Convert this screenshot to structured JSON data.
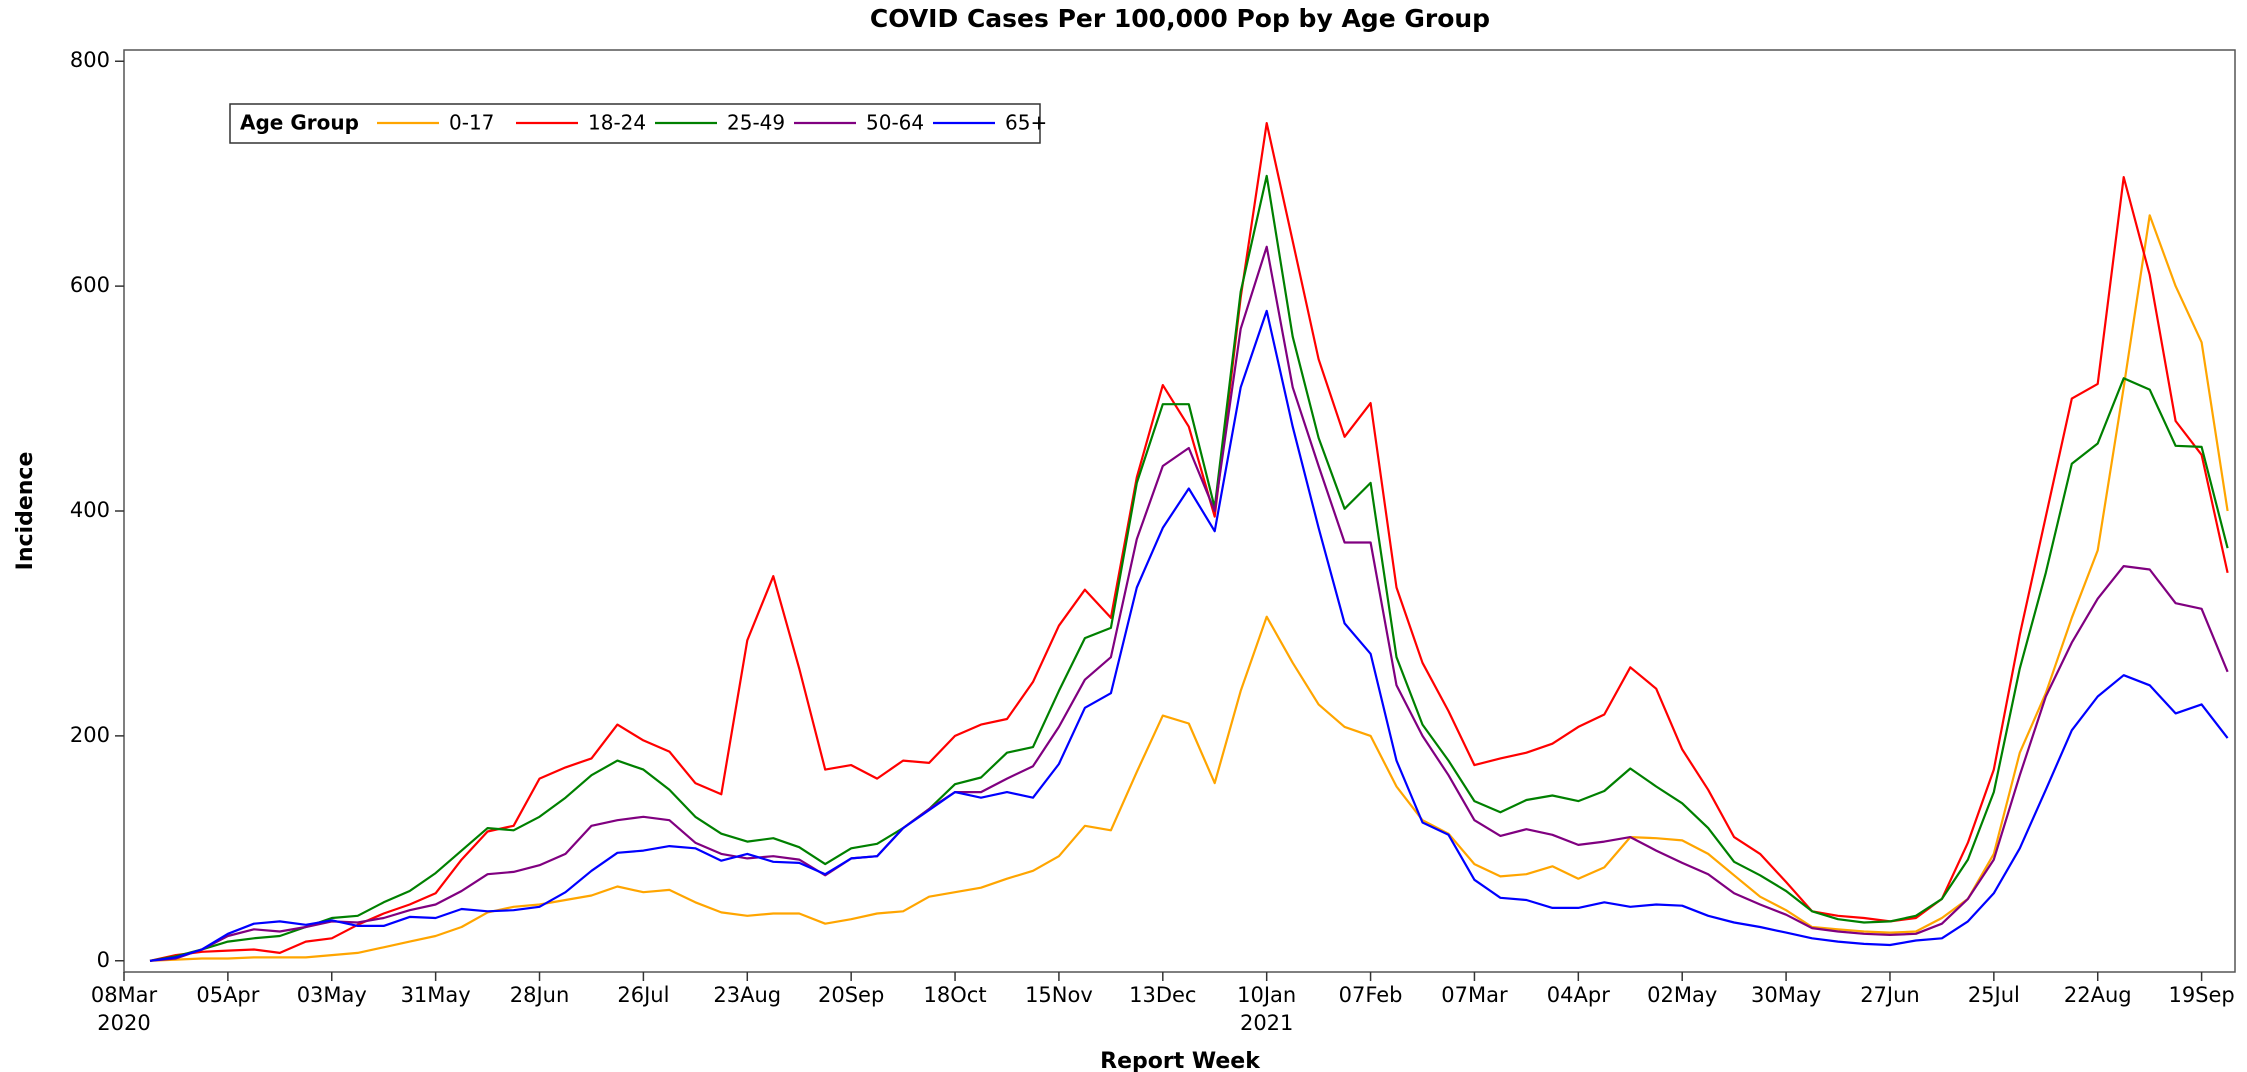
{
  "chart_data": {
    "type": "line",
    "title": "COVID Cases Per 100,000 Pop by Age Group",
    "x_label": "Report Week",
    "y_label": "Incidence",
    "legend_title": "Age Group",
    "legend_position": "upper left",
    "x": [
      "2020-03-15",
      "2020-03-22",
      "2020-03-29",
      "2020-04-05",
      "2020-04-12",
      "2020-04-19",
      "2020-04-26",
      "2020-05-03",
      "2020-05-10",
      "2020-05-17",
      "2020-05-24",
      "2020-05-31",
      "2020-06-07",
      "2020-06-14",
      "2020-06-21",
      "2020-06-28",
      "2020-07-05",
      "2020-07-12",
      "2020-07-19",
      "2020-07-26",
      "2020-08-02",
      "2020-08-09",
      "2020-08-16",
      "2020-08-23",
      "2020-08-30",
      "2020-09-06",
      "2020-09-13",
      "2020-09-20",
      "2020-09-27",
      "2020-10-04",
      "2020-10-11",
      "2020-10-18",
      "2020-10-25",
      "2020-11-01",
      "2020-11-08",
      "2020-11-15",
      "2020-11-22",
      "2020-11-29",
      "2020-12-06",
      "2020-12-13",
      "2020-12-20",
      "2020-12-27",
      "2021-01-03",
      "2021-01-10",
      "2021-01-17",
      "2021-01-24",
      "2021-01-31",
      "2021-02-07",
      "2021-02-14",
      "2021-02-21",
      "2021-02-28",
      "2021-03-07",
      "2021-03-14",
      "2021-03-21",
      "2021-03-28",
      "2021-04-04",
      "2021-04-11",
      "2021-04-18",
      "2021-04-25",
      "2021-05-02",
      "2021-05-09",
      "2021-05-16",
      "2021-05-23",
      "2021-05-30",
      "2021-06-06",
      "2021-06-13",
      "2021-06-20",
      "2021-06-27",
      "2021-07-04",
      "2021-07-11",
      "2021-07-18",
      "2021-07-25",
      "2021-08-01",
      "2021-08-08",
      "2021-08-15",
      "2021-08-22",
      "2021-08-29",
      "2021-09-05",
      "2021-09-12",
      "2021-09-19",
      "2021-09-26"
    ],
    "series": [
      {
        "name": "0-17",
        "color": "#ffa500",
        "values": [
          0,
          1,
          2,
          2,
          3,
          3,
          3,
          5,
          7,
          12,
          17,
          22,
          30,
          43,
          48,
          50,
          54,
          58,
          66,
          61,
          63,
          52,
          43,
          40,
          42,
          42,
          33,
          37,
          42,
          44,
          57,
          61,
          65,
          73,
          80,
          93,
          120,
          116,
          168,
          218,
          211,
          158,
          240,
          306,
          265,
          228,
          208,
          200,
          155,
          125,
          113,
          86,
          75,
          77,
          84,
          73,
          83,
          110,
          109,
          107,
          95,
          76,
          57,
          45,
          30,
          28,
          26,
          25,
          26,
          38,
          55,
          95,
          185,
          238,
          305,
          365,
          510,
          663,
          600,
          550,
          400
        ]
      },
      {
        "name": "18-24",
        "color": "#ff0000",
        "values": [
          0,
          5,
          8,
          9,
          10,
          7,
          17,
          20,
          32,
          42,
          50,
          60,
          90,
          115,
          120,
          162,
          172,
          180,
          210,
          196,
          186,
          158,
          148,
          285,
          342,
          260,
          170,
          174,
          162,
          178,
          176,
          200,
          210,
          215,
          248,
          298,
          330,
          305,
          430,
          512,
          475,
          395,
          590,
          745,
          640,
          535,
          466,
          496,
          332,
          265,
          222,
          174,
          180,
          185,
          193,
          208,
          219,
          261,
          242,
          188,
          152,
          110,
          95,
          70,
          44,
          40,
          38,
          35,
          38,
          55,
          105,
          170,
          290,
          395,
          500,
          513,
          697,
          610,
          480,
          450,
          345
        ]
      },
      {
        "name": "25-49",
        "color": "#008000",
        "values": [
          0,
          4,
          10,
          17,
          20,
          22,
          30,
          38,
          40,
          52,
          62,
          78,
          98,
          118,
          116,
          128,
          145,
          165,
          178,
          170,
          152,
          128,
          113,
          106,
          109,
          101,
          86,
          100,
          104,
          118,
          135,
          157,
          163,
          185,
          190,
          240,
          287,
          296,
          425,
          495,
          495,
          403,
          595,
          698,
          555,
          465,
          402,
          425,
          270,
          210,
          178,
          142,
          132,
          143,
          147,
          142,
          151,
          171,
          155,
          140,
          118,
          88,
          76,
          62,
          44,
          37,
          34,
          35,
          40,
          55,
          90,
          150,
          260,
          345,
          442,
          460,
          518,
          508,
          458,
          457,
          367
        ]
      },
      {
        "name": "50-64",
        "color": "#800080",
        "values": [
          0,
          2,
          10,
          22,
          28,
          26,
          30,
          35,
          34,
          38,
          45,
          50,
          62,
          77,
          79,
          85,
          95,
          120,
          125,
          128,
          125,
          105,
          95,
          91,
          93,
          90,
          76,
          91,
          93,
          118,
          135,
          150,
          150,
          162,
          173,
          208,
          250,
          270,
          375,
          440,
          456,
          400,
          562,
          635,
          510,
          440,
          372,
          372,
          245,
          200,
          165,
          125,
          111,
          117,
          112,
          103,
          106,
          110,
          98,
          87,
          77,
          60,
          50,
          41,
          29,
          26,
          24,
          23,
          24,
          33,
          55,
          90,
          165,
          235,
          283,
          322,
          351,
          348,
          318,
          313,
          257
        ]
      },
      {
        "name": "65+",
        "color": "#0000ff",
        "values": [
          0,
          3,
          10,
          24,
          33,
          35,
          32,
          36,
          31,
          31,
          39,
          38,
          46,
          44,
          45,
          48,
          61,
          80,
          96,
          98,
          102,
          100,
          89,
          95,
          88,
          87,
          77,
          91,
          93,
          118,
          134,
          150,
          145,
          150,
          145,
          175,
          225,
          238,
          332,
          385,
          420,
          382,
          510,
          578,
          475,
          385,
          300,
          273,
          178,
          123,
          112,
          72,
          56,
          54,
          47,
          47,
          52,
          48,
          50,
          49,
          40,
          34,
          30,
          25,
          20,
          17,
          15,
          14,
          18,
          20,
          35,
          60,
          100,
          152,
          205,
          235,
          254,
          245,
          220,
          228,
          198
        ]
      }
    ],
    "xlim": [
      "2020-03-08",
      "2021-09-28"
    ],
    "xticks": [
      {
        "value": "2020-03-08",
        "label": "08Mar",
        "year": "2020"
      },
      {
        "value": "2020-04-05",
        "label": "05Apr"
      },
      {
        "value": "2020-05-03",
        "label": "03May"
      },
      {
        "value": "2020-05-31",
        "label": "31May"
      },
      {
        "value": "2020-06-28",
        "label": "28Jun"
      },
      {
        "value": "2020-07-26",
        "label": "26Jul"
      },
      {
        "value": "2020-08-23",
        "label": "23Aug"
      },
      {
        "value": "2020-09-20",
        "label": "20Sep"
      },
      {
        "value": "2020-10-18",
        "label": "18Oct"
      },
      {
        "value": "2020-11-15",
        "label": "15Nov"
      },
      {
        "value": "2020-12-13",
        "label": "13Dec"
      },
      {
        "value": "2021-01-10",
        "label": "10Jan",
        "year": "2021"
      },
      {
        "value": "2021-02-07",
        "label": "07Feb"
      },
      {
        "value": "2021-03-07",
        "label": "07Mar"
      },
      {
        "value": "2021-04-04",
        "label": "04Apr"
      },
      {
        "value": "2021-05-02",
        "label": "02May"
      },
      {
        "value": "2021-05-30",
        "label": "30May"
      },
      {
        "value": "2021-06-27",
        "label": "27Jun"
      },
      {
        "value": "2021-07-25",
        "label": "25Jul"
      },
      {
        "value": "2021-08-22",
        "label": "22Aug"
      },
      {
        "value": "2021-09-19",
        "label": "19Sep"
      }
    ],
    "ylim": [
      -10,
      810
    ],
    "yticks": [
      0,
      200,
      400,
      600,
      800
    ],
    "grid": false
  }
}
